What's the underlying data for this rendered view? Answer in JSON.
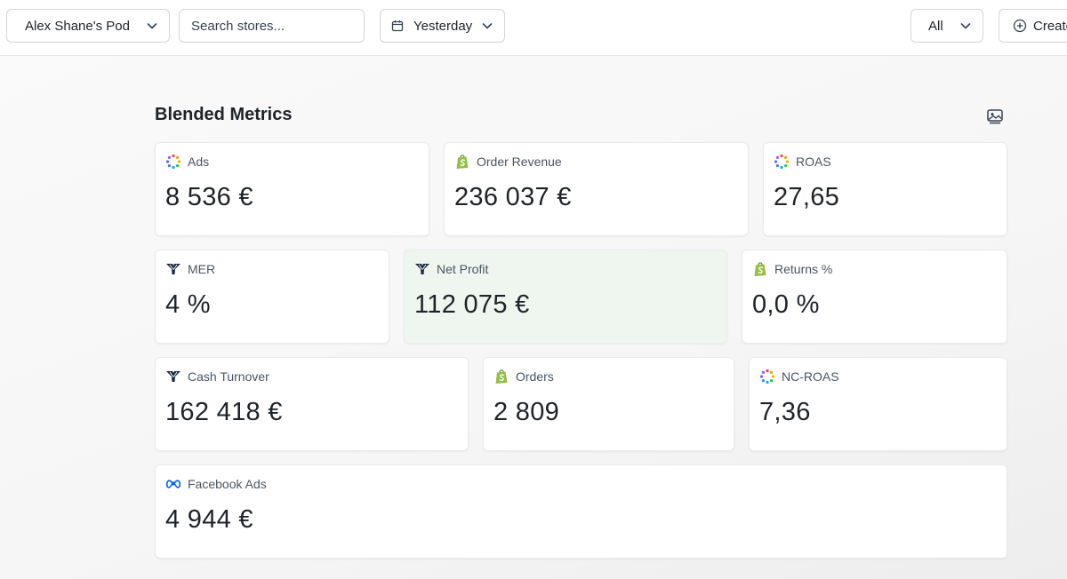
{
  "toolbar": {
    "pod_label": "Alex Shane's Pod",
    "search_placeholder": "Search stores...",
    "date_label": "Yesterday",
    "filter_label": "All",
    "create_label": "Create"
  },
  "section": {
    "title": "Blended Metrics",
    "icon": "image-icon"
  },
  "cards": [
    {
      "label": "Ads",
      "value": "8 536 €",
      "icon": "spinner-dots-icon"
    },
    {
      "label": "Order Revenue",
      "value": "236 037 €",
      "icon": "shopify-icon"
    },
    {
      "label": "ROAS",
      "value": "27,65",
      "icon": "spinner-dots-icon"
    },
    {
      "label": "MER",
      "value": "4 %",
      "icon": "brand-logo-icon"
    },
    {
      "label": "Net Profit",
      "value": "112 075 €",
      "icon": "brand-logo-icon",
      "highlight": true
    },
    {
      "label": "Returns %",
      "value": "0,0 %",
      "icon": "shopify-icon"
    },
    {
      "label": "Cash Turnover",
      "value": "162 418 €",
      "icon": "brand-logo-icon"
    },
    {
      "label": "Orders",
      "value": "2 809",
      "icon": "shopify-icon"
    },
    {
      "label": "NC-ROAS",
      "value": "7,36",
      "icon": "spinner-dots-icon"
    },
    {
      "label": "Facebook Ads",
      "value": "4 944 €",
      "icon": "meta-icon"
    }
  ],
  "colors": {
    "highlight_bg": "#eef6ef",
    "shopify_green": "#95bf47",
    "brand_navy": "#1c2b45",
    "meta_blue": "#0668e1"
  }
}
